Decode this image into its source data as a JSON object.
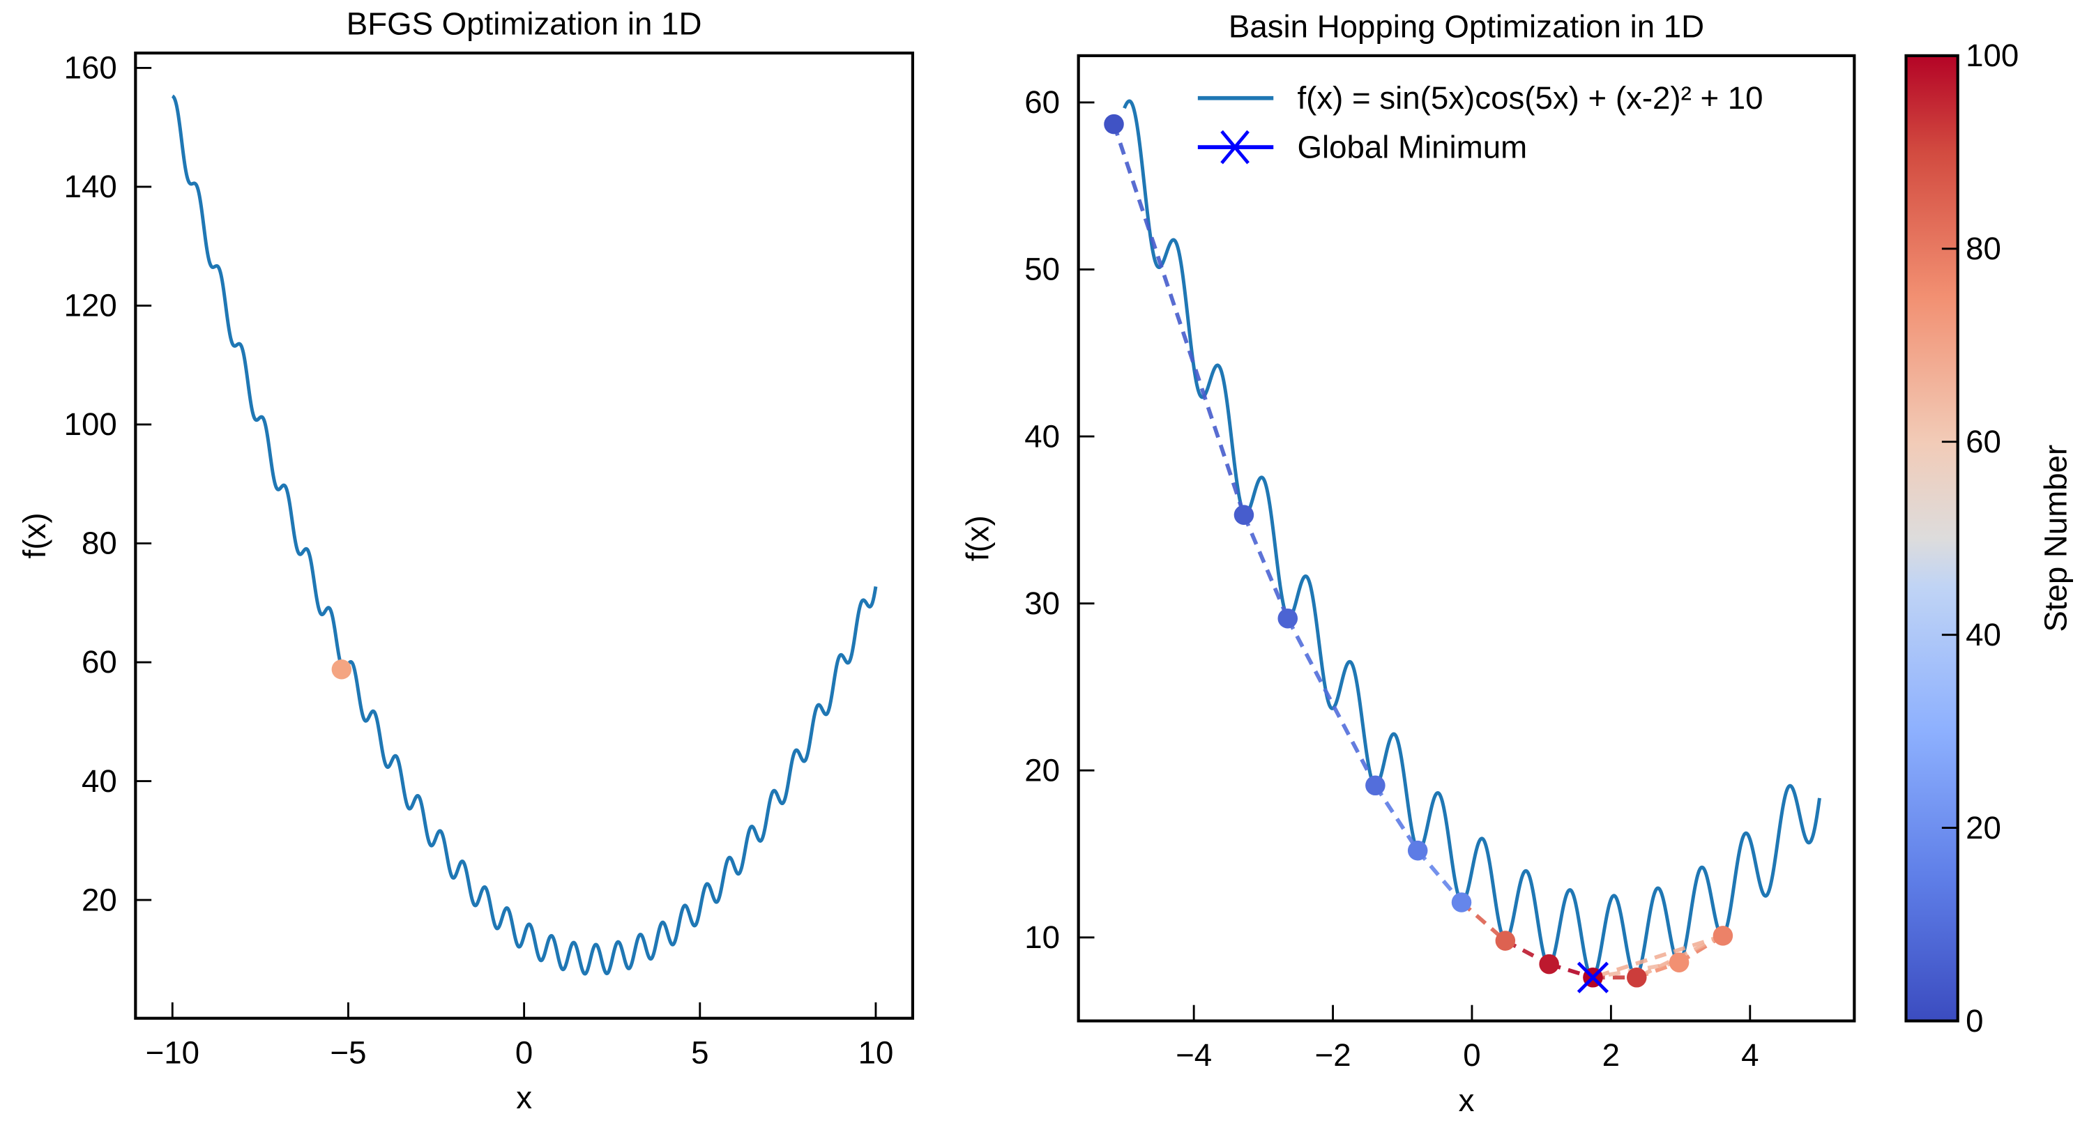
{
  "chart_data": [
    {
      "type": "line",
      "title": "BFGS Optimization in 1D",
      "xlabel": "x",
      "ylabel": "f(x)",
      "xlim": [
        -11.05,
        11.05
      ],
      "ylim": [
        0.1,
        162.5
      ],
      "xticks": [
        -10,
        -5,
        0,
        5,
        10
      ],
      "xtick_labels": [
        "−10",
        "−5",
        "0",
        "5",
        "10"
      ],
      "yticks": [
        20,
        40,
        60,
        80,
        100,
        120,
        140,
        160
      ],
      "ytick_labels": [
        "20",
        "40",
        "60",
        "80",
        "100",
        "120",
        "140",
        "160"
      ],
      "curve_domain": [
        -10,
        10
      ],
      "curve_color": "#1f77b4",
      "points": [
        {
          "x": -5.19,
          "y": 58.8,
          "color": "#f4a582"
        }
      ],
      "grid": false
    },
    {
      "type": "scatter",
      "title": "Basin Hopping Optimization in 1D",
      "xlabel": "x",
      "ylabel": "f(x)",
      "xlim": [
        -5.66,
        5.5
      ],
      "ylim": [
        5.0,
        62.8
      ],
      "xticks": [
        -4,
        -2,
        0,
        2,
        4
      ],
      "xtick_labels": [
        "−4",
        "−2",
        "0",
        "2",
        "4"
      ],
      "yticks": [
        10,
        20,
        30,
        40,
        50,
        60
      ],
      "ytick_labels": [
        "10",
        "20",
        "30",
        "40",
        "50",
        "60"
      ],
      "curve_domain": [
        -5,
        5
      ],
      "curve_color": "#1f77b4",
      "legend": {
        "position": "top-right",
        "entries": [
          "f(x) = sin(5x)cos(5x) + (x-2)² + 10",
          "Global Minimum"
        ]
      },
      "points": [
        {
          "x": -5.15,
          "y": 58.7,
          "step": 2
        },
        {
          "x": -3.28,
          "y": 35.3,
          "step": 5
        },
        {
          "x": -2.65,
          "y": 29.1,
          "step": 7
        },
        {
          "x": -1.39,
          "y": 19.1,
          "step": 10
        },
        {
          "x": -0.78,
          "y": 15.2,
          "step": 14
        },
        {
          "x": -0.15,
          "y": 12.1,
          "step": 17
        },
        {
          "x": 0.48,
          "y": 9.8,
          "step": 85
        },
        {
          "x": 1.11,
          "y": 8.4,
          "step": 97
        },
        {
          "x": 1.74,
          "y": 7.6,
          "step": 100
        },
        {
          "x": 2.37,
          "y": 7.6,
          "step": 92
        },
        {
          "x": 2.98,
          "y": 8.5,
          "step": 75
        },
        {
          "x": 3.61,
          "y": 10.1,
          "step": 78
        }
      ],
      "global_minimum": {
        "x": 1.74,
        "y": 7.6,
        "color": "#0000ff"
      },
      "colorbar": {
        "label": "Step Number",
        "range": [
          0,
          100
        ],
        "ticks": [
          0,
          20,
          40,
          60,
          80,
          100
        ],
        "tick_labels": [
          "0",
          "20",
          "40",
          "60",
          "80",
          "100"
        ],
        "colormap": "coolwarm"
      },
      "grid": false
    }
  ]
}
